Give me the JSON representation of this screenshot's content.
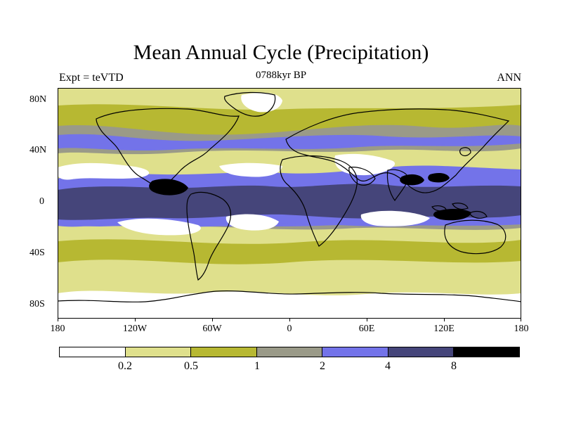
{
  "title": "Mean Annual Cycle (Precipitation)",
  "subtitle": "0788kyr BP",
  "left_label": "Expt = teVTD",
  "right_label": "ANN",
  "y_axis": [
    "80N",
    "40N",
    "0",
    "40S",
    "80S"
  ],
  "x_axis": [
    "180",
    "120W",
    "60W",
    "0",
    "60E",
    "120E",
    "180"
  ],
  "colorbar": {
    "labels": [
      "0.2",
      "0.5",
      "1",
      "2",
      "4",
      "8"
    ],
    "colors": [
      "#ffffff",
      "#dfe08c",
      "#b7b832",
      "#9a9a88",
      "#7373e9",
      "#45457a",
      "#000000"
    ]
  },
  "colors": {
    "dry": "#ffffff",
    "light": "#dfe08c",
    "olive": "#b7b832",
    "gray": "#9a9a88",
    "blue": "#7373e9",
    "dark": "#45457a",
    "black": "#000000"
  }
}
